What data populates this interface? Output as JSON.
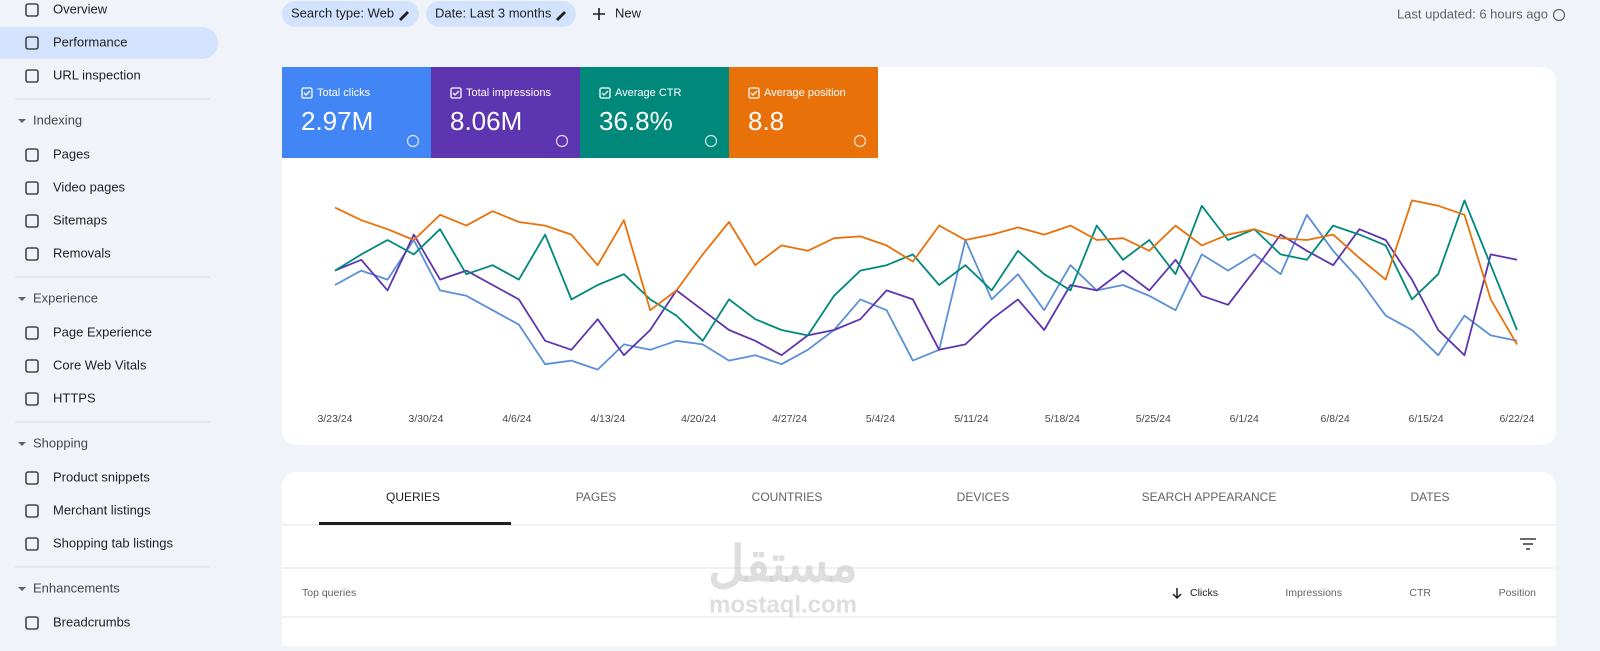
{
  "sidebar": {
    "items": [
      {
        "type": "item",
        "label": "Overview"
      },
      {
        "type": "item",
        "label": "Performance",
        "selected": true
      },
      {
        "type": "item",
        "label": "URL inspection"
      },
      {
        "type": "section",
        "label": "Indexing"
      },
      {
        "type": "item",
        "label": "Pages"
      },
      {
        "type": "item",
        "label": "Video pages"
      },
      {
        "type": "item",
        "label": "Sitemaps"
      },
      {
        "type": "item",
        "label": "Removals"
      },
      {
        "type": "section",
        "label": "Experience"
      },
      {
        "type": "item",
        "label": "Page Experience"
      },
      {
        "type": "item",
        "label": "Core Web Vitals"
      },
      {
        "type": "item",
        "label": "HTTPS"
      },
      {
        "type": "section",
        "label": "Shopping"
      },
      {
        "type": "item",
        "label": "Product snippets"
      },
      {
        "type": "item",
        "label": "Merchant listings"
      },
      {
        "type": "item",
        "label": "Shopping tab listings"
      },
      {
        "type": "section",
        "label": "Enhancements"
      },
      {
        "type": "item",
        "label": "Breadcrumbs"
      }
    ]
  },
  "filters": [
    "Search type: Web",
    "Date: Last 3 months"
  ],
  "new_button": "New",
  "last_updated": "Last updated: 6 hours ago",
  "metrics": [
    {
      "label": "Total clicks",
      "value": "2.97M",
      "color": "#4285f4"
    },
    {
      "label": "Total impressions",
      "value": "8.06M",
      "color": "#5e35b1"
    },
    {
      "label": "Average CTR",
      "value": "36.8%",
      "color": "#00897b"
    },
    {
      "label": "Average position",
      "value": "8.8",
      "color": "#e8710a"
    }
  ],
  "chart_data": {
    "type": "line",
    "ylim": [
      0,
      100
    ],
    "xticks": [
      "3/23/24",
      "3/30/24",
      "4/6/24",
      "4/13/24",
      "4/20/24",
      "4/27/24",
      "5/4/24",
      "5/11/24",
      "5/18/24",
      "5/25/24",
      "6/1/24",
      "6/8/24",
      "6/15/24",
      "6/22/24"
    ],
    "series": [
      {
        "name": "Total clicks",
        "color": "#5b8fd9",
        "values": [
          50,
          58,
          53,
          75,
          47,
          44,
          36,
          28,
          6,
          8,
          3,
          17,
          14,
          19,
          17,
          8,
          11,
          6,
          14,
          25,
          42,
          36,
          8,
          14,
          75,
          42,
          56,
          36,
          61,
          47,
          50,
          44,
          36,
          67,
          58,
          67,
          56,
          89,
          69,
          53,
          33,
          25,
          11,
          33,
          22,
          19
        ]
      },
      {
        "name": "Total impressions",
        "color": "#5e35b1",
        "values": [
          58,
          64,
          47,
          78,
          53,
          58,
          50,
          42,
          19,
          14,
          31,
          11,
          25,
          47,
          36,
          25,
          19,
          11,
          22,
          25,
          31,
          47,
          42,
          14,
          17,
          31,
          42,
          25,
          50,
          47,
          58,
          47,
          64,
          44,
          39,
          58,
          78,
          69,
          61,
          81,
          75,
          53,
          25,
          11,
          67,
          64
        ]
      },
      {
        "name": "Average CTR",
        "color": "#00897b",
        "values": [
          58,
          67,
          75,
          67,
          81,
          56,
          61,
          53,
          78,
          42,
          50,
          56,
          42,
          33,
          19,
          42,
          31,
          25,
          22,
          44,
          58,
          61,
          67,
          50,
          61,
          47,
          69,
          56,
          47,
          83,
          64,
          75,
          56,
          94,
          75,
          81,
          67,
          64,
          83,
          78,
          72,
          42,
          56,
          97,
          61,
          25
        ]
      },
      {
        "name": "Average position",
        "color": "#e8710a",
        "values": [
          93,
          86,
          81,
          75,
          89,
          83,
          91,
          85,
          83,
          78,
          61,
          86,
          36,
          47,
          67,
          85,
          61,
          72,
          69,
          76,
          77,
          72,
          63,
          83,
          75,
          78,
          82,
          78,
          83,
          75,
          76,
          69,
          83,
          72,
          78,
          81,
          76,
          75,
          78,
          65,
          53,
          97,
          94,
          89,
          42,
          17
        ]
      }
    ]
  },
  "tabs": [
    "QUERIES",
    "PAGES",
    "COUNTRIES",
    "DEVICES",
    "SEARCH APPEARANCE",
    "DATES"
  ],
  "table": {
    "headers": [
      "Top queries",
      "Clicks",
      "Impressions",
      "CTR",
      "Position"
    ]
  },
  "watermark": {
    "arabic": "مستقل",
    "latin": "mostaql.com"
  }
}
